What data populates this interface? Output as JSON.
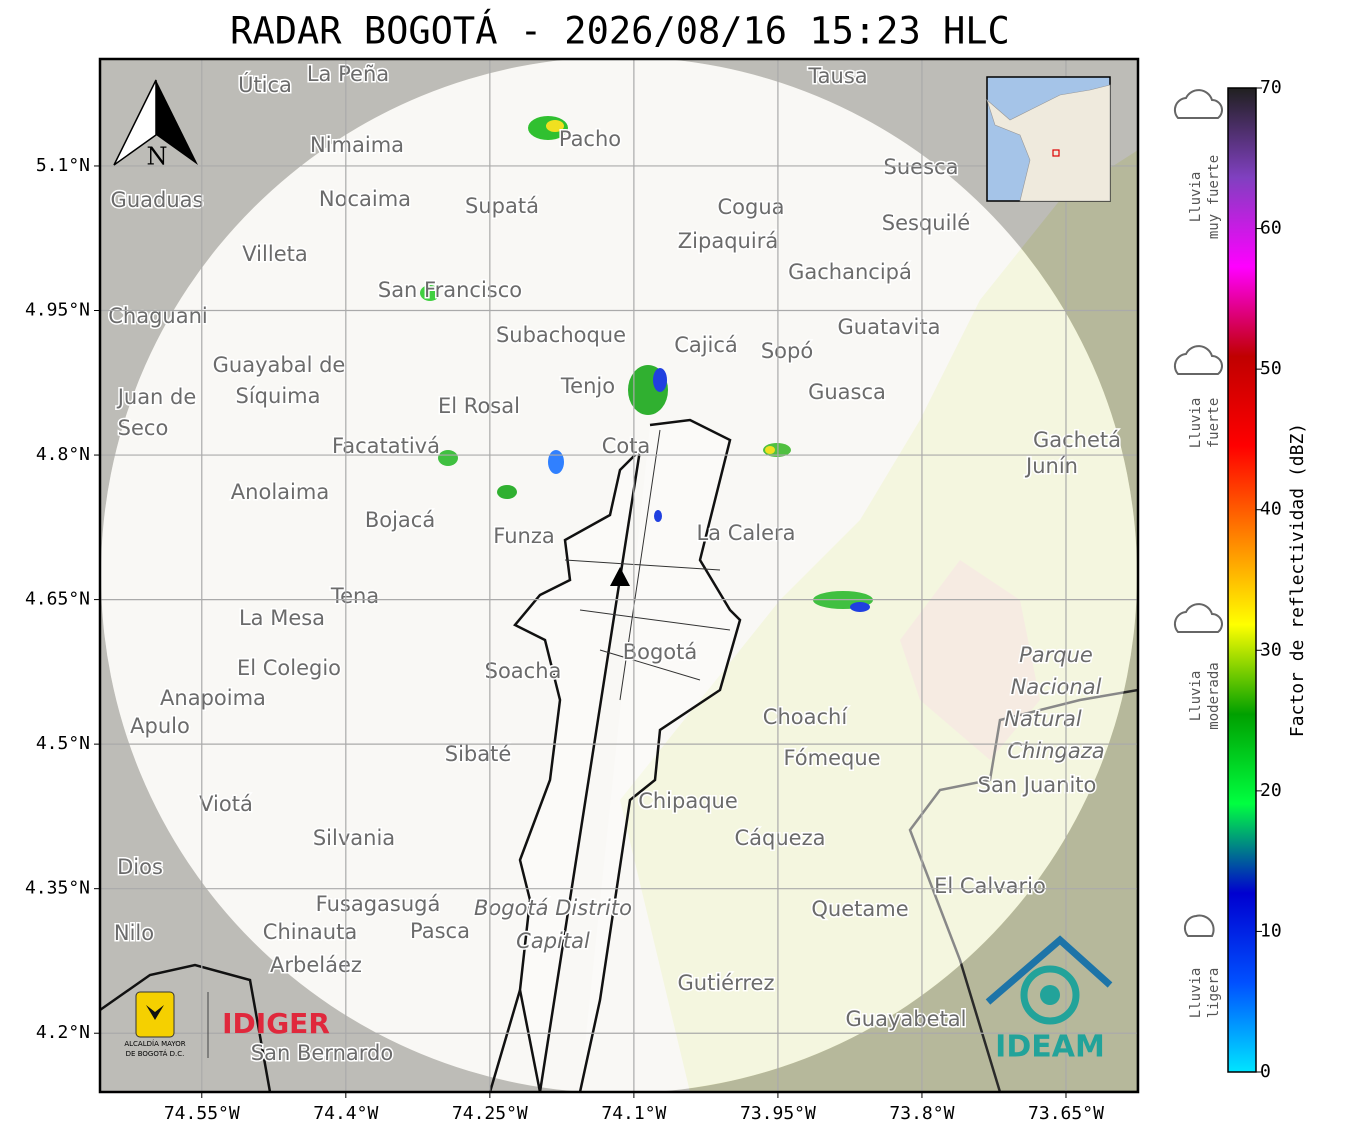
{
  "title": "RADAR BOGOTÁ - 2026/08/16 15:23 HLC",
  "map": {
    "xlim": [
      -74.656,
      -73.575
    ],
    "ylim": [
      4.139,
      5.211
    ],
    "xticks": [
      {
        "value": -74.55,
        "label": "74.55°W"
      },
      {
        "value": -74.4,
        "label": "74.4°W"
      },
      {
        "value": -74.25,
        "label": "74.25°W"
      },
      {
        "value": -74.1,
        "label": "74.1°W"
      },
      {
        "value": -73.95,
        "label": "73.95°W"
      },
      {
        "value": -73.8,
        "label": "73.8°W"
      },
      {
        "value": -73.65,
        "label": "73.65°W"
      }
    ],
    "yticks": [
      {
        "value": 5.1,
        "label": "5.1°N"
      },
      {
        "value": 4.95,
        "label": "4.95°N"
      },
      {
        "value": 4.8,
        "label": "4.8°N"
      },
      {
        "value": 4.65,
        "label": "4.65°N"
      },
      {
        "value": 4.5,
        "label": "4.5°N"
      },
      {
        "value": 4.35,
        "label": "4.35°N"
      },
      {
        "value": 4.2,
        "label": "4.2°N"
      }
    ],
    "grid": true,
    "north_label": "N",
    "places": [
      "La Peña",
      "Útica",
      "Tausa",
      "Pacho",
      "Nimaima",
      "Guaduas",
      "Nocaima",
      "Supatá",
      "Cogua",
      "Suesca",
      "Sesquilé",
      "Zipaquirá",
      "Villeta",
      "Gachancipá",
      "San Francisco",
      "Chaguani",
      "Guatavita",
      "Subachoque",
      "Cajicá",
      "Sopó",
      "Guayabal de",
      "Síquima",
      "Tenjo",
      "Guasca",
      "El Rosal",
      "Juan de",
      "Seco",
      "Facatativá",
      "Gachetá",
      "Junín",
      "Cota",
      "Anolaima",
      "Bojacá",
      "Funza",
      "La Calera",
      "Tena",
      "La Mesa",
      "El Colegio",
      "Soacha",
      "Bogotá",
      "Parque",
      "Nacional",
      "Natural",
      "Chingaza",
      "Anapoima",
      "Apulo",
      "Choachí",
      "Fómeque",
      "Sibaté",
      "San Juanito",
      "Viotá",
      "Chipaque",
      "Silvania",
      "Cáqueza",
      "Dios",
      "El Calvario",
      "Fusagasugá",
      "Quetame",
      "Bogotá Distrito",
      "Capital",
      "Nilo",
      "Chinauta",
      "Pasca",
      "Arbeláez",
      "Gutiérrez",
      "Guayabetal",
      "San Bernardo"
    ]
  },
  "colorbar": {
    "label": "Factor de reflectividad (dBZ)",
    "lim": [
      0,
      70
    ],
    "ticks": [
      0,
      10,
      20,
      30,
      40,
      50,
      60,
      70
    ],
    "colormap": [
      "#00e5ff",
      "#0050ff",
      "#0000d0",
      "#00ff40",
      "#00a000",
      "#ffff00",
      "#ff8000",
      "#ff0000",
      "#c00000",
      "#ff00ff",
      "#8040c0",
      "#202020"
    ]
  },
  "rain_classes": [
    [
      "Lluvia",
      "muy fuerte"
    ],
    [
      "Lluvia",
      "fuerte"
    ],
    [
      "Lluvia",
      "moderada"
    ],
    [
      "Lluvia",
      "ligera"
    ]
  ],
  "logos": {
    "alcaldia": [
      "ALCALDÍA MAYOR",
      "DE BOGOTÁ D.C."
    ],
    "idiger": "IDIGER",
    "ideam": "IDEAM"
  }
}
